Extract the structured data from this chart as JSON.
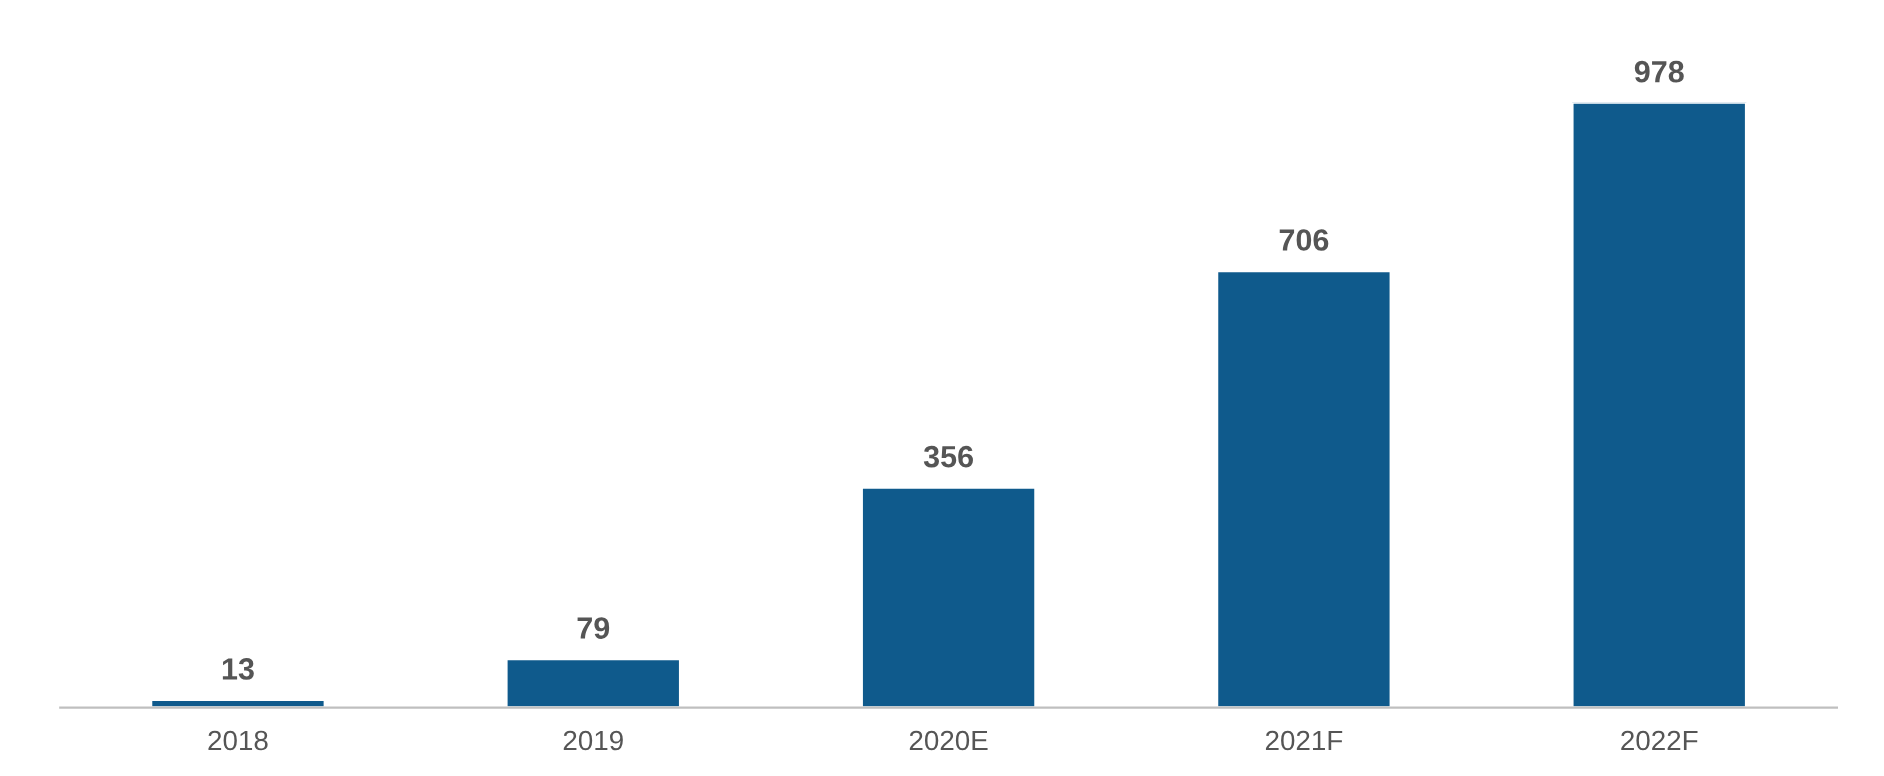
{
  "chart_data": {
    "type": "bar",
    "categories": [
      "2018",
      "2019",
      "2020E",
      "2021F",
      "2022F"
    ],
    "values": [
      13,
      79,
      356,
      706,
      978
    ],
    "color": "#0f5a8c",
    "data_labels": true,
    "grid": false,
    "legend": false
  }
}
